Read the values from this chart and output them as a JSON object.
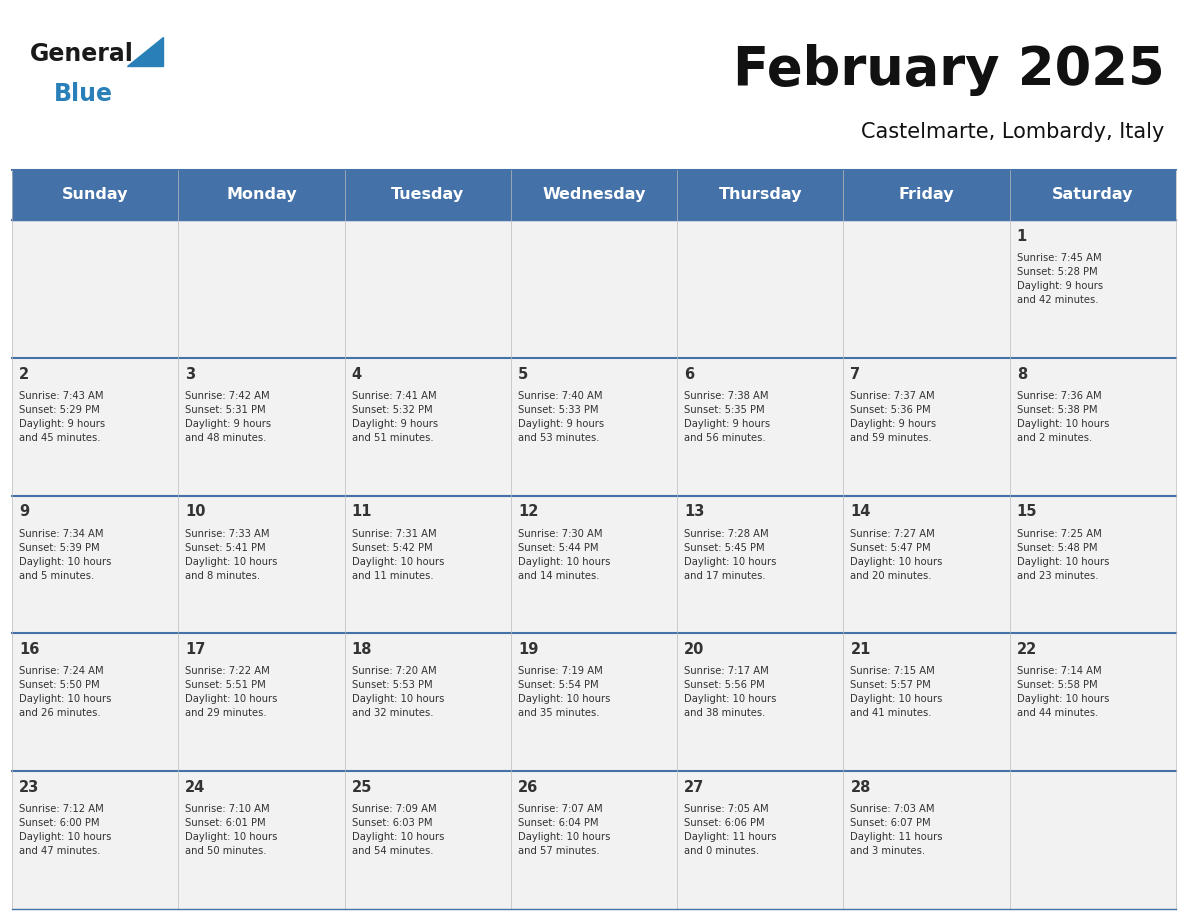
{
  "title": "February 2025",
  "subtitle": "Castelmarte, Lombardy, Italy",
  "header_color": "#4472a8",
  "header_text_color": "#ffffff",
  "cell_bg_even": "#f2f2f2",
  "cell_bg_odd": "#f2f2f2",
  "border_color": "#4472a8",
  "row_line_color": "#4472a8",
  "text_color": "#333333",
  "days_of_week": [
    "Sunday",
    "Monday",
    "Tuesday",
    "Wednesday",
    "Thursday",
    "Friday",
    "Saturday"
  ],
  "weeks": [
    [
      {
        "day": null,
        "info": null
      },
      {
        "day": null,
        "info": null
      },
      {
        "day": null,
        "info": null
      },
      {
        "day": null,
        "info": null
      },
      {
        "day": null,
        "info": null
      },
      {
        "day": null,
        "info": null
      },
      {
        "day": 1,
        "info": "Sunrise: 7:45 AM\nSunset: 5:28 PM\nDaylight: 9 hours\nand 42 minutes."
      }
    ],
    [
      {
        "day": 2,
        "info": "Sunrise: 7:43 AM\nSunset: 5:29 PM\nDaylight: 9 hours\nand 45 minutes."
      },
      {
        "day": 3,
        "info": "Sunrise: 7:42 AM\nSunset: 5:31 PM\nDaylight: 9 hours\nand 48 minutes."
      },
      {
        "day": 4,
        "info": "Sunrise: 7:41 AM\nSunset: 5:32 PM\nDaylight: 9 hours\nand 51 minutes."
      },
      {
        "day": 5,
        "info": "Sunrise: 7:40 AM\nSunset: 5:33 PM\nDaylight: 9 hours\nand 53 minutes."
      },
      {
        "day": 6,
        "info": "Sunrise: 7:38 AM\nSunset: 5:35 PM\nDaylight: 9 hours\nand 56 minutes."
      },
      {
        "day": 7,
        "info": "Sunrise: 7:37 AM\nSunset: 5:36 PM\nDaylight: 9 hours\nand 59 minutes."
      },
      {
        "day": 8,
        "info": "Sunrise: 7:36 AM\nSunset: 5:38 PM\nDaylight: 10 hours\nand 2 minutes."
      }
    ],
    [
      {
        "day": 9,
        "info": "Sunrise: 7:34 AM\nSunset: 5:39 PM\nDaylight: 10 hours\nand 5 minutes."
      },
      {
        "day": 10,
        "info": "Sunrise: 7:33 AM\nSunset: 5:41 PM\nDaylight: 10 hours\nand 8 minutes."
      },
      {
        "day": 11,
        "info": "Sunrise: 7:31 AM\nSunset: 5:42 PM\nDaylight: 10 hours\nand 11 minutes."
      },
      {
        "day": 12,
        "info": "Sunrise: 7:30 AM\nSunset: 5:44 PM\nDaylight: 10 hours\nand 14 minutes."
      },
      {
        "day": 13,
        "info": "Sunrise: 7:28 AM\nSunset: 5:45 PM\nDaylight: 10 hours\nand 17 minutes."
      },
      {
        "day": 14,
        "info": "Sunrise: 7:27 AM\nSunset: 5:47 PM\nDaylight: 10 hours\nand 20 minutes."
      },
      {
        "day": 15,
        "info": "Sunrise: 7:25 AM\nSunset: 5:48 PM\nDaylight: 10 hours\nand 23 minutes."
      }
    ],
    [
      {
        "day": 16,
        "info": "Sunrise: 7:24 AM\nSunset: 5:50 PM\nDaylight: 10 hours\nand 26 minutes."
      },
      {
        "day": 17,
        "info": "Sunrise: 7:22 AM\nSunset: 5:51 PM\nDaylight: 10 hours\nand 29 minutes."
      },
      {
        "day": 18,
        "info": "Sunrise: 7:20 AM\nSunset: 5:53 PM\nDaylight: 10 hours\nand 32 minutes."
      },
      {
        "day": 19,
        "info": "Sunrise: 7:19 AM\nSunset: 5:54 PM\nDaylight: 10 hours\nand 35 minutes."
      },
      {
        "day": 20,
        "info": "Sunrise: 7:17 AM\nSunset: 5:56 PM\nDaylight: 10 hours\nand 38 minutes."
      },
      {
        "day": 21,
        "info": "Sunrise: 7:15 AM\nSunset: 5:57 PM\nDaylight: 10 hours\nand 41 minutes."
      },
      {
        "day": 22,
        "info": "Sunrise: 7:14 AM\nSunset: 5:58 PM\nDaylight: 10 hours\nand 44 minutes."
      }
    ],
    [
      {
        "day": 23,
        "info": "Sunrise: 7:12 AM\nSunset: 6:00 PM\nDaylight: 10 hours\nand 47 minutes."
      },
      {
        "day": 24,
        "info": "Sunrise: 7:10 AM\nSunset: 6:01 PM\nDaylight: 10 hours\nand 50 minutes."
      },
      {
        "day": 25,
        "info": "Sunrise: 7:09 AM\nSunset: 6:03 PM\nDaylight: 10 hours\nand 54 minutes."
      },
      {
        "day": 26,
        "info": "Sunrise: 7:07 AM\nSunset: 6:04 PM\nDaylight: 10 hours\nand 57 minutes."
      },
      {
        "day": 27,
        "info": "Sunrise: 7:05 AM\nSunset: 6:06 PM\nDaylight: 11 hours\nand 0 minutes."
      },
      {
        "day": 28,
        "info": "Sunrise: 7:03 AM\nSunset: 6:07 PM\nDaylight: 11 hours\nand 3 minutes."
      },
      {
        "day": null,
        "info": null
      }
    ]
  ],
  "logo_general_color": "#1a1a1a",
  "logo_blue_color": "#2980b9",
  "logo_triangle_color": "#2980b9",
  "fig_width": 11.88,
  "fig_height": 9.18,
  "dpi": 100
}
